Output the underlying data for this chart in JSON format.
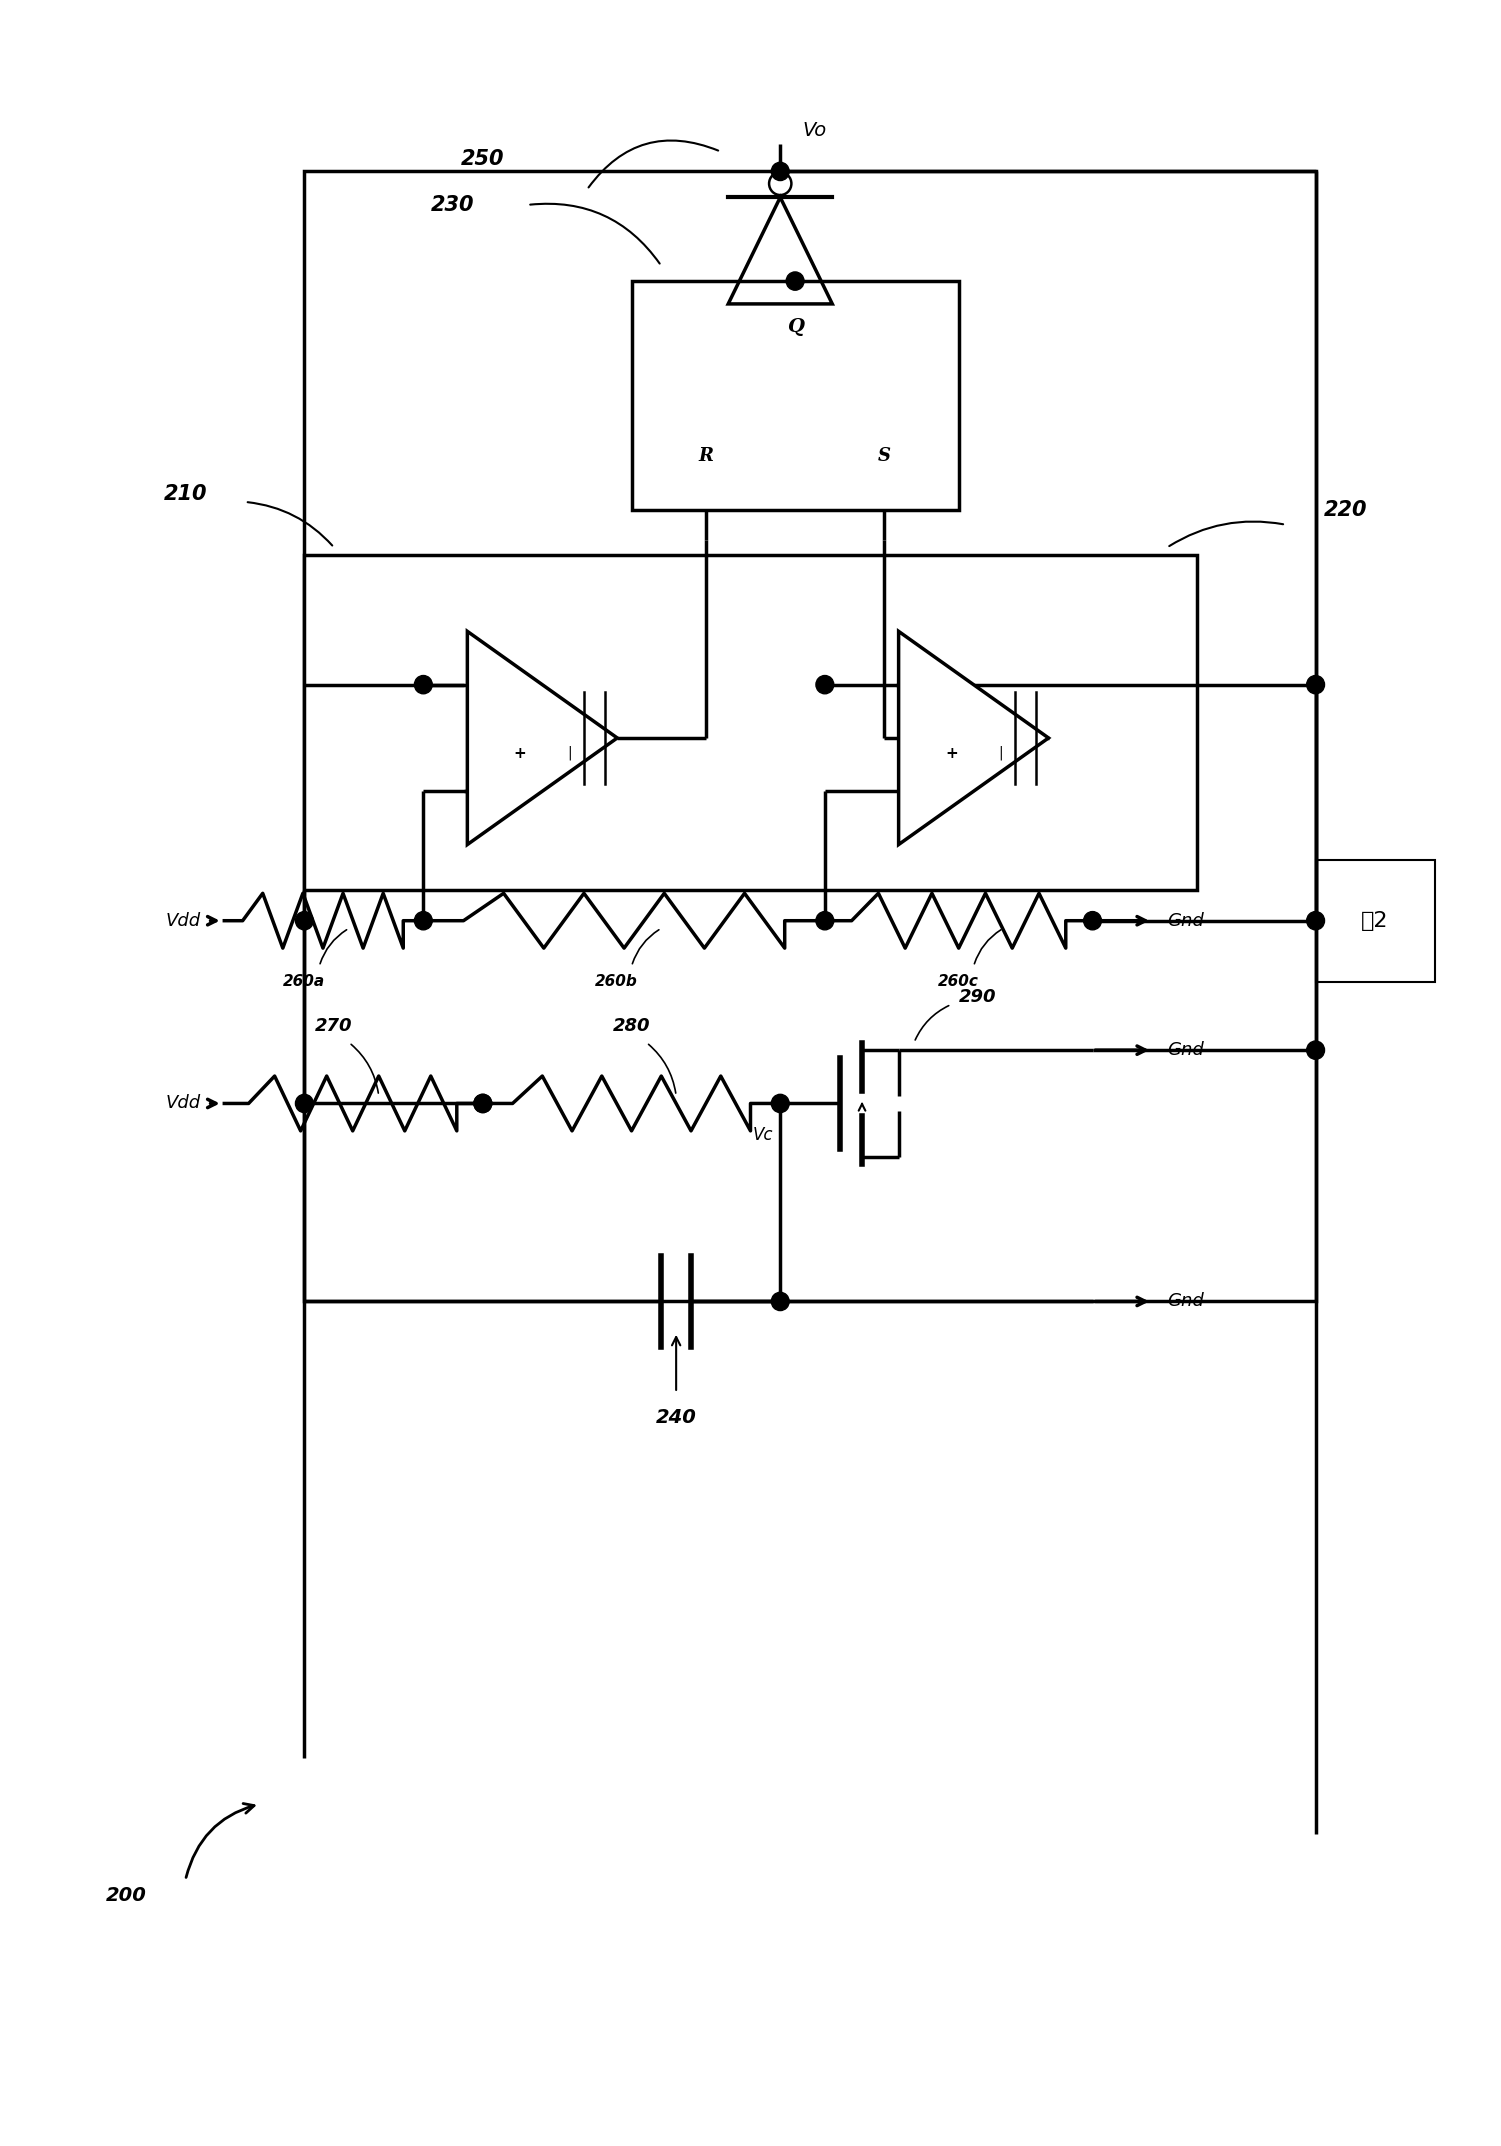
{
  "fig_width": 15.01,
  "fig_height": 21.46,
  "dpi": 100,
  "bg": "#ffffff",
  "lw": 2.5,
  "xlim": [
    0,
    100
  ],
  "ylim": [
    0,
    140
  ],
  "labels": {
    "Vo": "Vo",
    "Vdd_top": "Vdd",
    "Vdd_bot": "Vdd",
    "Gnd1": "Gnd",
    "Gnd2": "Gnd",
    "Gnd3": "Gnd",
    "Vc": "Vc",
    "Q": "Q",
    "R": "R",
    "S": "S",
    "ref_200": "200",
    "ref_210": "210",
    "ref_220": "220",
    "ref_230": "230",
    "ref_240": "240",
    "ref_250": "250",
    "ref_260a": "260a",
    "ref_260b": "260b",
    "ref_260c": "260c",
    "ref_270": "270",
    "ref_280": "280",
    "ref_290": "290",
    "fig_label": "图2"
  }
}
